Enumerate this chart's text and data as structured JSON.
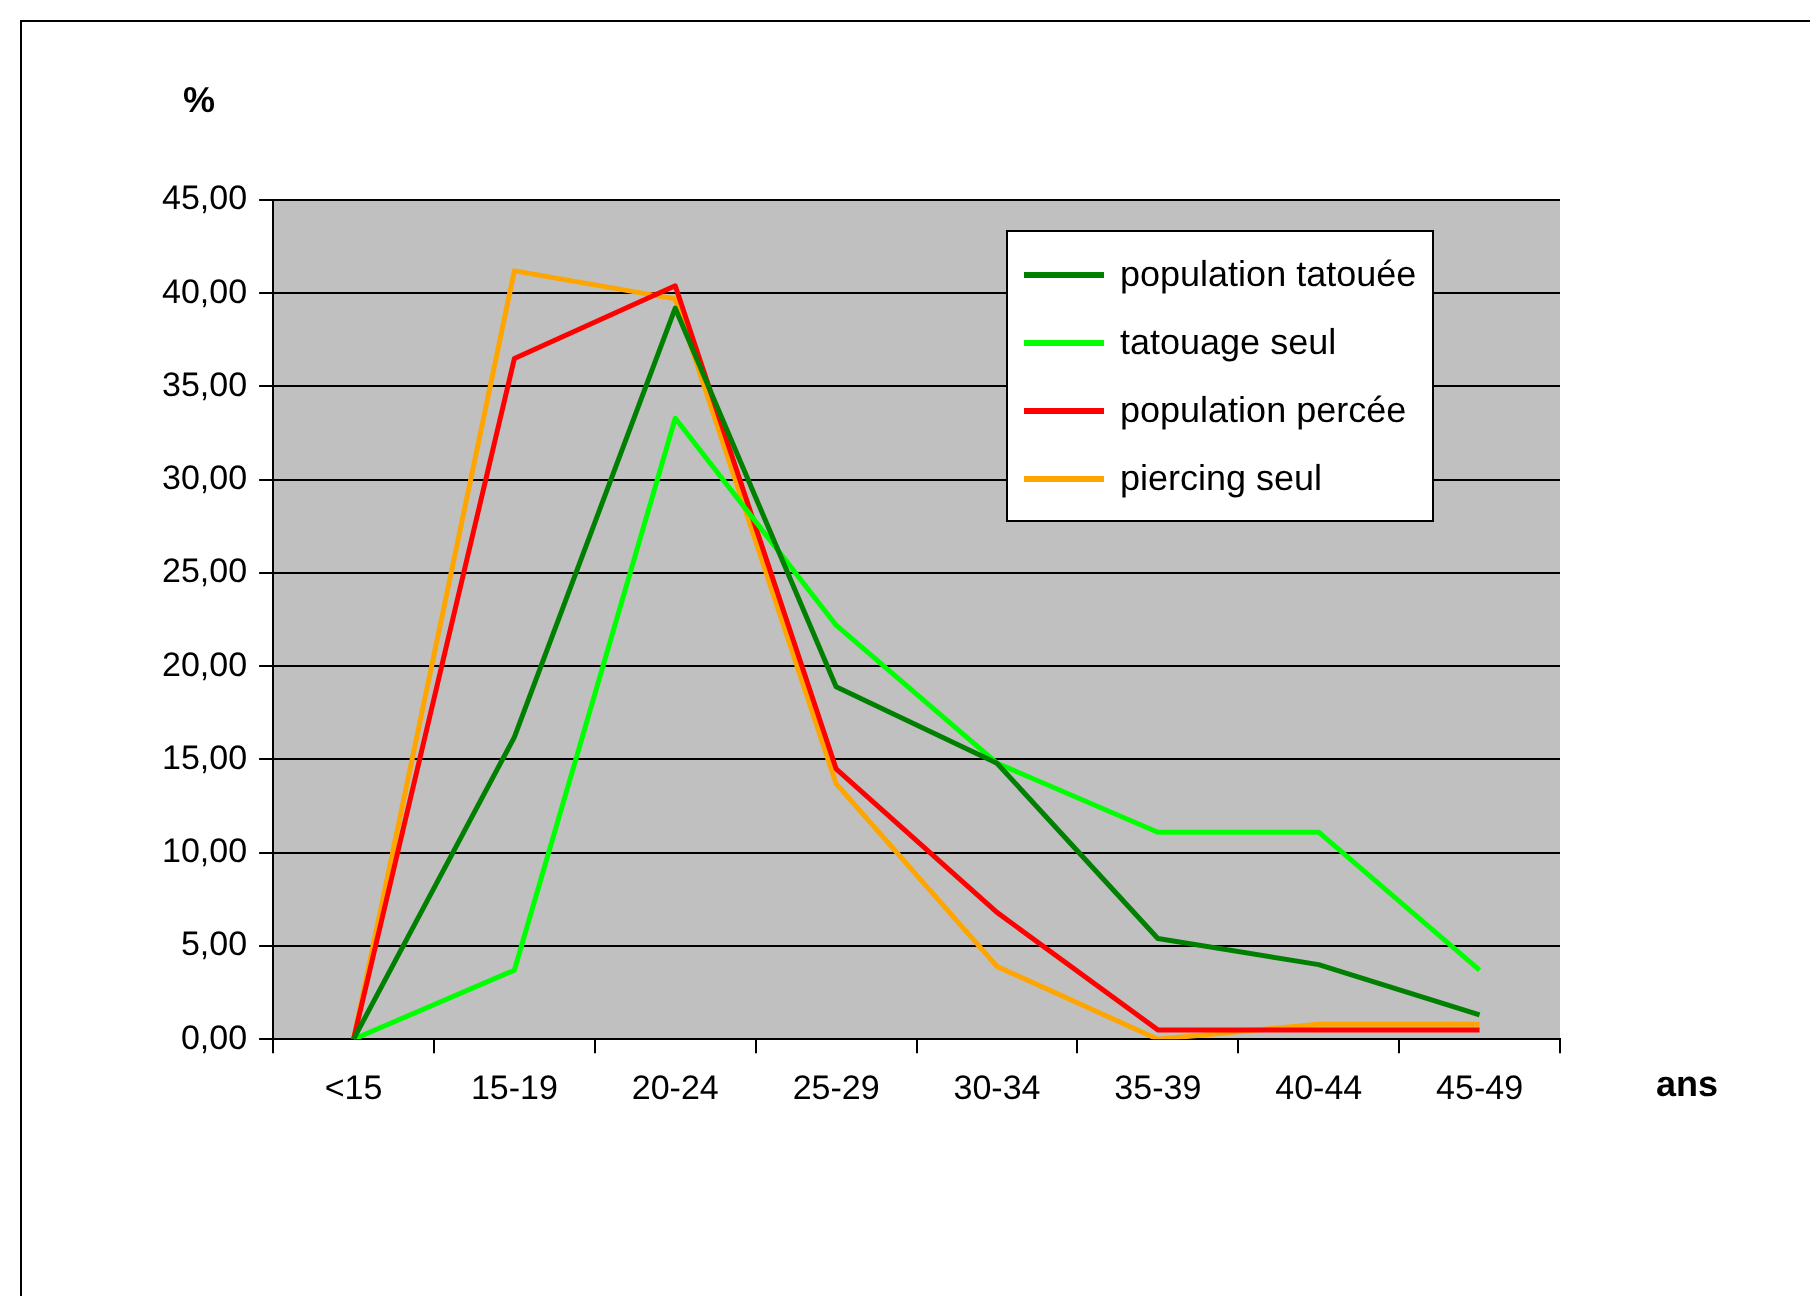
{
  "chart_data": {
    "type": "line",
    "xlabel": "ans",
    "ylabel": "%",
    "categories": [
      "<15",
      "15-19",
      "20-24",
      "25-29",
      "30-34",
      "35-39",
      "40-44",
      "45-49"
    ],
    "series": [
      {
        "name": "population tatouée",
        "color": "#008000",
        "values": [
          0,
          16.2,
          39.2,
          18.9,
          14.8,
          5.4,
          4.0,
          1.3
        ]
      },
      {
        "name": "tatouage seul",
        "color": "#00ff00",
        "values": [
          0,
          3.7,
          33.3,
          22.2,
          14.8,
          11.1,
          11.1,
          3.7
        ]
      },
      {
        "name": "population percée",
        "color": "#ff0000",
        "values": [
          0,
          36.5,
          40.4,
          14.5,
          6.8,
          0.5,
          0.5,
          0.5
        ]
      },
      {
        "name": "piercing seul",
        "color": "#ffa500",
        "values": [
          0,
          41.2,
          39.7,
          13.7,
          3.9,
          0,
          0.8,
          0.8
        ]
      }
    ],
    "ylim": [
      0,
      45
    ],
    "yticks": [
      {
        "value": 0,
        "label": "0,00"
      },
      {
        "value": 5,
        "label": "5,00"
      },
      {
        "value": 10,
        "label": "10,00"
      },
      {
        "value": 15,
        "label": "15,00"
      },
      {
        "value": 20,
        "label": "20,00"
      },
      {
        "value": 25,
        "label": "25,00"
      },
      {
        "value": 30,
        "label": "30,00"
      },
      {
        "value": 35,
        "label": "35,00"
      },
      {
        "value": 40,
        "label": "40,00"
      },
      {
        "value": 45,
        "label": "45,00"
      }
    ],
    "grid": "y",
    "legend": "top right",
    "marker": "none",
    "line_style": "solid"
  }
}
